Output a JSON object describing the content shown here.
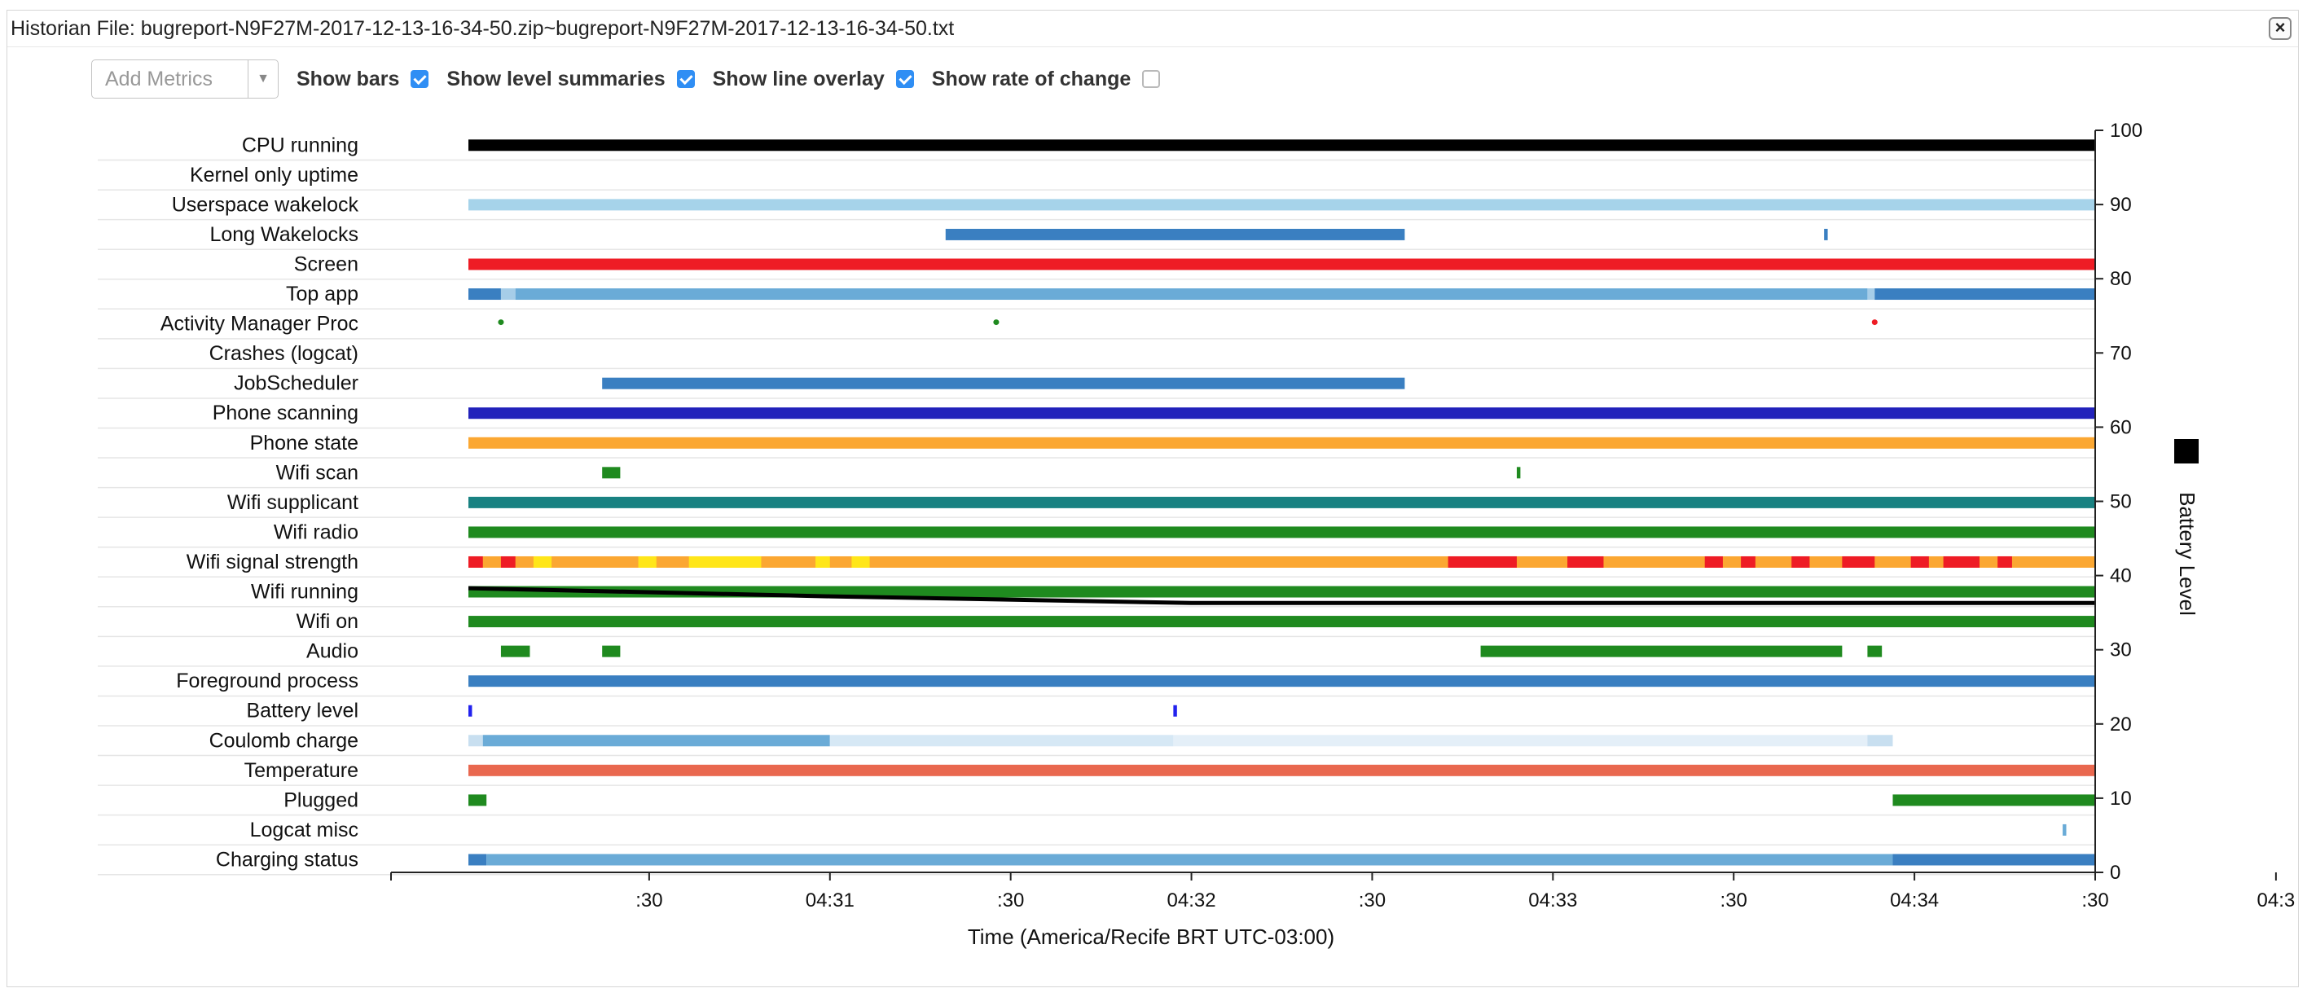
{
  "window": {
    "title": "Historian File: bugreport-N9F27M-2017-12-13-16-34-50.zip~bugreport-N9F27M-2017-12-13-16-34-50.txt",
    "close_label": "×"
  },
  "controls": {
    "add_metrics_placeholder": "Add Metrics",
    "options": [
      {
        "label": "Show bars",
        "checked": true
      },
      {
        "label": "Show level summaries",
        "checked": true
      },
      {
        "label": "Show line overlay",
        "checked": true
      },
      {
        "label": "Show rate of change",
        "checked": false
      }
    ]
  },
  "timeline": {
    "time_range_minutes": [
      0,
      4.5
    ],
    "x_ticks": [
      ":30",
      "04:31",
      ":30",
      "04:32",
      ":30",
      "04:33",
      ":30",
      "04:34",
      ":30",
      "04:3"
    ],
    "x_axis_title": "Time (America/Recife BRT UTC-03:00)",
    "y_axis_title": "Battery Level",
    "y_ticks": [
      "100",
      "90",
      "80",
      "70",
      "60",
      "50",
      "40",
      "30",
      "20",
      "10",
      "0"
    ],
    "battery_level_line": [
      {
        "t": 0.0,
        "level": 38.3
      },
      {
        "t": 1.0,
        "level": 37.2
      },
      {
        "t": 2.0,
        "level": 36.3
      },
      {
        "t": 3.0,
        "level": 36.3
      },
      {
        "t": 4.5,
        "level": 36.3
      }
    ],
    "rows": [
      {
        "label": "CPU running",
        "segments": [
          [
            0.0,
            4.5,
            "#000000"
          ]
        ]
      },
      {
        "label": "Kernel only uptime",
        "segments": []
      },
      {
        "label": "Userspace wakelock",
        "segments": [
          [
            0.0,
            4.5,
            "#a6d3ea"
          ]
        ]
      },
      {
        "label": "Long Wakelocks",
        "segments": [
          [
            1.32,
            2.59,
            "#3a7fc1"
          ],
          [
            3.75,
            3.76,
            "#3a7fc1"
          ]
        ]
      },
      {
        "label": "Screen",
        "segments": [
          [
            0.0,
            4.5,
            "#ee1c25"
          ]
        ]
      },
      {
        "label": "Top app",
        "segments": [
          [
            0.0,
            0.09,
            "#3a7fc1"
          ],
          [
            0.09,
            0.13,
            "#a6cde8"
          ],
          [
            0.13,
            3.87,
            "#6aabd7"
          ],
          [
            3.87,
            3.89,
            "#a6cde8"
          ],
          [
            3.89,
            4.5,
            "#3a7fc1"
          ]
        ]
      },
      {
        "label": "Activity Manager Proc",
        "points": [
          [
            0.09,
            "#1f8a1f"
          ],
          [
            1.46,
            "#1f8a1f"
          ],
          [
            3.89,
            "#ee1c25"
          ]
        ]
      },
      {
        "label": "Crashes (logcat)",
        "segments": []
      },
      {
        "label": "JobScheduler",
        "segments": [
          [
            0.37,
            2.59,
            "#3a7fc1"
          ]
        ]
      },
      {
        "label": "Phone scanning",
        "segments": [
          [
            0.0,
            4.5,
            "#2222bb"
          ]
        ]
      },
      {
        "label": "Phone state",
        "segments": [
          [
            0.0,
            4.5,
            "#fba732"
          ]
        ]
      },
      {
        "label": "Wifi scan",
        "segments": [
          [
            0.37,
            0.42,
            "#1f8a1f"
          ],
          [
            2.9,
            2.91,
            "#1f8a1f"
          ]
        ]
      },
      {
        "label": "Wifi supplicant",
        "segments": [
          [
            0.0,
            4.5,
            "#198282"
          ]
        ]
      },
      {
        "label": "Wifi radio",
        "segments": [
          [
            0.0,
            4.5,
            "#1f8a1f"
          ]
        ]
      },
      {
        "label": "Wifi signal strength",
        "segments": [
          [
            0.0,
            4.5,
            "#fba732"
          ],
          [
            0.0,
            0.04,
            "#ee1c25"
          ],
          [
            0.09,
            0.13,
            "#ee1c25"
          ],
          [
            0.18,
            0.23,
            "#ffe619"
          ],
          [
            0.47,
            0.52,
            "#ffe619"
          ],
          [
            0.61,
            0.81,
            "#ffe619"
          ],
          [
            0.96,
            1.0,
            "#ffe619"
          ],
          [
            1.06,
            1.11,
            "#ffe619"
          ],
          [
            2.71,
            2.9,
            "#ee1c25"
          ],
          [
            3.04,
            3.14,
            "#ee1c25"
          ],
          [
            3.42,
            3.47,
            "#ee1c25"
          ],
          [
            3.52,
            3.56,
            "#ee1c25"
          ],
          [
            3.66,
            3.71,
            "#ee1c25"
          ],
          [
            3.8,
            3.89,
            "#ee1c25"
          ],
          [
            3.99,
            4.04,
            "#ee1c25"
          ],
          [
            4.08,
            4.18,
            "#ee1c25"
          ],
          [
            4.23,
            4.27,
            "#ee1c25"
          ]
        ]
      },
      {
        "label": "Wifi running",
        "segments": [
          [
            0.0,
            4.5,
            "#1f8a1f"
          ]
        ]
      },
      {
        "label": "Wifi on",
        "segments": [
          [
            0.0,
            4.5,
            "#1f8a1f"
          ]
        ]
      },
      {
        "label": "Audio",
        "segments": [
          [
            0.09,
            0.17,
            "#1f8a1f"
          ],
          [
            0.37,
            0.42,
            "#1f8a1f"
          ],
          [
            2.8,
            3.8,
            "#1f8a1f"
          ],
          [
            3.87,
            3.91,
            "#1f8a1f"
          ]
        ]
      },
      {
        "label": "Foreground process",
        "segments": [
          [
            0.0,
            4.5,
            "#3a7fc1"
          ]
        ]
      },
      {
        "label": "Battery level",
        "segments": [
          [
            0.0,
            0.01,
            "#2222ee"
          ],
          [
            1.95,
            1.96,
            "#2222ee"
          ]
        ]
      },
      {
        "label": "Coulomb charge",
        "segments": [
          [
            0.0,
            0.04,
            "#c8dff0"
          ],
          [
            0.04,
            1.0,
            "#6aabd7"
          ],
          [
            1.0,
            1.95,
            "#d6e8f5"
          ],
          [
            1.95,
            3.87,
            "#e4eff8"
          ],
          [
            3.87,
            3.94,
            "#c8dff0"
          ]
        ]
      },
      {
        "label": "Temperature",
        "segments": [
          [
            0.0,
            4.5,
            "#e9684f"
          ]
        ]
      },
      {
        "label": "Plugged",
        "segments": [
          [
            0.0,
            0.05,
            "#1f8a1f"
          ],
          [
            3.94,
            4.5,
            "#1f8a1f"
          ]
        ]
      },
      {
        "label": "Logcat misc",
        "segments": [
          [
            4.41,
            4.42,
            "#6aabd7"
          ]
        ]
      },
      {
        "label": "Charging status",
        "segments": [
          [
            0.0,
            0.05,
            "#3a7fc1"
          ],
          [
            0.05,
            3.94,
            "#6aabd7"
          ],
          [
            3.94,
            4.5,
            "#3a7fc1"
          ]
        ]
      }
    ]
  },
  "legend": {
    "swatch_color": "#000000"
  }
}
